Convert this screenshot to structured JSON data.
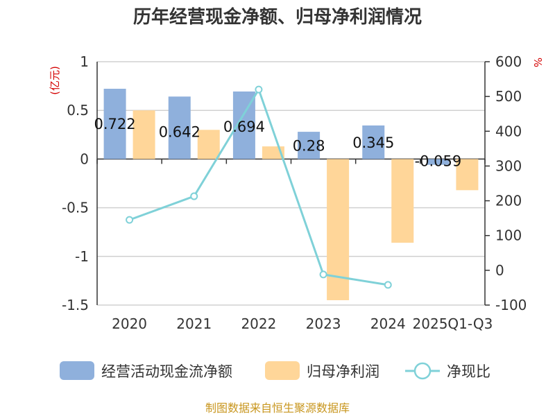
{
  "title": "历年经营现金净额、归母净利润情况",
  "source": "制图数据来自恒生聚源数据库",
  "chart_data": {
    "type": "bar+line",
    "title": "历年经营现金净额、归母净利润情况",
    "categories": [
      "2020",
      "2021",
      "2022",
      "2023",
      "2024",
      "2025Q1-Q3"
    ],
    "left_axis": {
      "unit": "(亿元)",
      "min": -1.5,
      "max": 1,
      "ticks": [
        "1",
        "0.5",
        "0",
        "-0.5",
        "-1",
        "-1.5"
      ]
    },
    "right_axis": {
      "unit": "%",
      "min": -100,
      "max": 600,
      "ticks": [
        "600",
        "500",
        "400",
        "300",
        "200",
        "100",
        "0",
        "-100"
      ]
    },
    "series": [
      {
        "name": "经营活动现金流净额",
        "type": "bar",
        "axis": "left",
        "color": "#8fb0dc",
        "values": [
          0.722,
          0.642,
          0.694,
          0.28,
          0.345,
          -0.059
        ],
        "labels": [
          "0.722",
          "0.642",
          "0.694",
          "0.28",
          "0.345",
          "-0.059"
        ]
      },
      {
        "name": "归母净利润",
        "type": "bar",
        "axis": "left",
        "color": "#ffd699",
        "values": [
          0.5,
          0.3,
          0.13,
          -1.45,
          -0.86,
          -0.32
        ]
      },
      {
        "name": "净现比",
        "type": "line",
        "axis": "right",
        "color": "#7fd1d8",
        "values": [
          145,
          213,
          520,
          -12,
          -42,
          null
        ]
      }
    ],
    "grid": true,
    "legend_position": "bottom"
  }
}
